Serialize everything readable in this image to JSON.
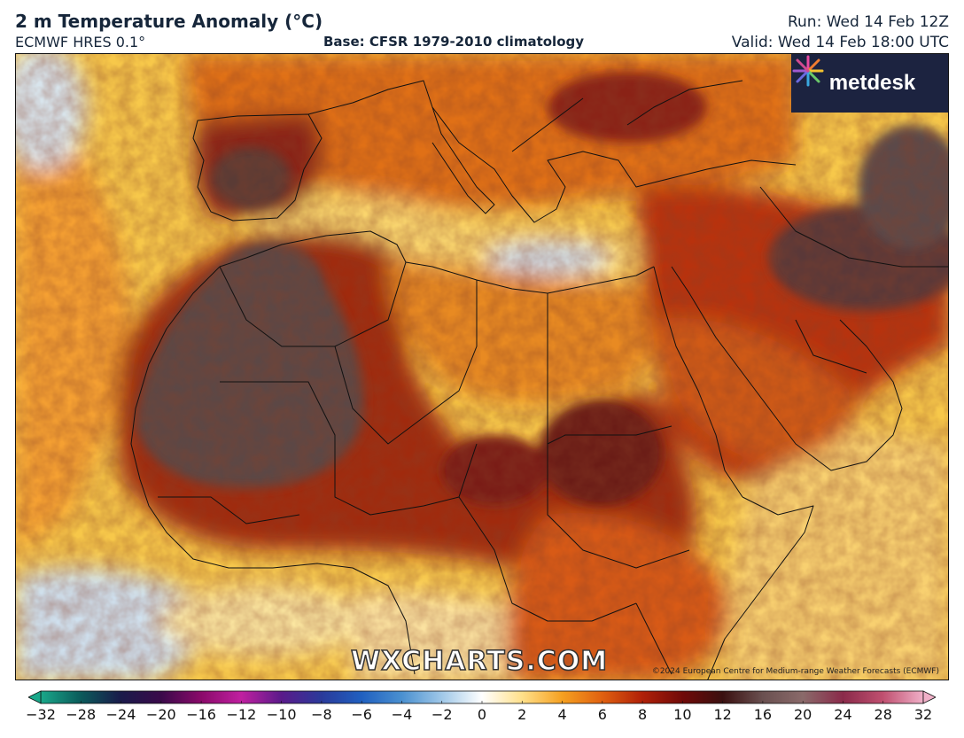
{
  "header": {
    "title": "2 m Temperature Anomaly (°C)",
    "model": "ECMWF HRES 0.1°",
    "base": "Base: CFSR 1979-2010 climatology",
    "run": "Run: Wed 14 Feb 12Z",
    "valid": "Valid: Wed 14 Feb 18:00 UTC"
  },
  "logo": {
    "text": "metdesk",
    "icon": "metdesk-burst-icon"
  },
  "watermark": "WXCHARTS.COM",
  "copyright": "©2024 European Centre for Medium-range Weather Forecasts (ECMWF)",
  "colorbar": {
    "ticks": [
      "−32",
      "−28",
      "−24",
      "−20",
      "−16",
      "−12",
      "−10",
      "−8",
      "−6",
      "−4",
      "−2",
      "0",
      "2",
      "4",
      "6",
      "8",
      "10",
      "12",
      "16",
      "20",
      "24",
      "28",
      "32"
    ],
    "colors": [
      "#1aa88a",
      "#0b5a5a",
      "#1a1a4a",
      "#3a0a4a",
      "#8a0a6a",
      "#c020a0",
      "#5a1a8a",
      "#2a3a9a",
      "#2060c0",
      "#4a90d0",
      "#a0c8e8",
      "#ffffff",
      "#ffe08a",
      "#f5a020",
      "#e06010",
      "#b02008",
      "#700a08",
      "#3a1010",
      "#6a5050",
      "#8a6a6a",
      "#8a2a4a",
      "#c05070",
      "#f0b0c8"
    ]
  },
  "map": {
    "region": "Europe, North Africa and Middle East",
    "palette": {
      "ocean_warm": "#f6c040",
      "cool": "#c8dcec",
      "mild": "#fbe6a0",
      "warm": "#e88020",
      "hot": "#b02a10",
      "very_hot": "#6a1a14",
      "extreme": "#5a4444",
      "border": "#111111"
    }
  }
}
